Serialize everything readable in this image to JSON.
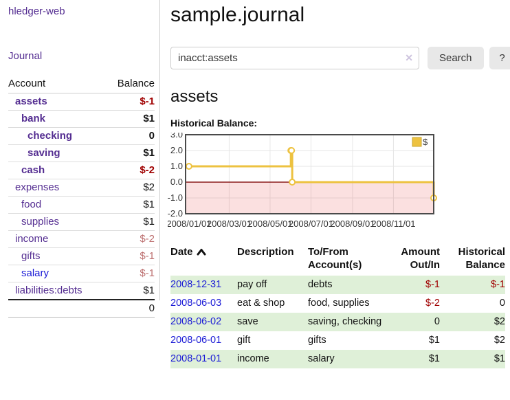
{
  "sidebar": {
    "app_title": "hledger-web",
    "nav": {
      "journal_label": "Journal"
    },
    "table": {
      "headers": {
        "account": "Account",
        "balance": "Balance"
      },
      "accounts": [
        {
          "name": "assets",
          "indent": 1,
          "bold": true,
          "link_color": "purple",
          "balance": "$-1",
          "balance_class": "neg-strong"
        },
        {
          "name": "bank",
          "indent": 2,
          "bold": true,
          "link_color": "purple",
          "balance": "$1",
          "balance_class": "pos"
        },
        {
          "name": "checking",
          "indent": 3,
          "bold": true,
          "link_color": "purple",
          "balance": "0",
          "balance_class": "pos"
        },
        {
          "name": "saving",
          "indent": 3,
          "bold": true,
          "link_color": "purple",
          "balance": "$1",
          "balance_class": "pos"
        },
        {
          "name": "cash",
          "indent": 2,
          "bold": true,
          "link_color": "purple",
          "balance": "$-2",
          "balance_class": "neg-strong"
        },
        {
          "name": "expenses",
          "indent": 1,
          "bold": false,
          "link_color": "purple",
          "balance": "$2",
          "balance_class": "pos"
        },
        {
          "name": "food",
          "indent": 2,
          "bold": false,
          "link_color": "purple",
          "balance": "$1",
          "balance_class": "pos"
        },
        {
          "name": "supplies",
          "indent": 2,
          "bold": false,
          "link_color": "purple",
          "balance": "$1",
          "balance_class": "pos"
        },
        {
          "name": "income",
          "indent": 1,
          "bold": false,
          "link_color": "purple",
          "balance": "$-2",
          "balance_class": "neg-dim"
        },
        {
          "name": "gifts",
          "indent": 2,
          "bold": false,
          "link_color": "purple",
          "balance": "$-1",
          "balance_class": "neg-dim"
        },
        {
          "name": "salary",
          "indent": 2,
          "bold": false,
          "link_color": "blue",
          "balance": "$-1",
          "balance_class": "neg-dim"
        },
        {
          "name": "liabilities:debts",
          "indent": 1,
          "bold": false,
          "link_color": "purple",
          "balance": "$1",
          "balance_class": "pos"
        }
      ],
      "total": "0"
    }
  },
  "header": {
    "title": "sample.journal"
  },
  "search": {
    "value": "inacct:assets",
    "clear_icon": "✕",
    "search_label": "Search",
    "help_label": "?"
  },
  "account_view": {
    "heading": "assets"
  },
  "chart_data": {
    "type": "line",
    "title": "Historical Balance:",
    "step": true,
    "series": [
      {
        "name": "$",
        "color": "#edc240",
        "points": [
          {
            "date": "2008-01-01",
            "value": 1
          },
          {
            "date": "2008-06-01",
            "value": 2
          },
          {
            "date": "2008-06-02",
            "value": 2
          },
          {
            "date": "2008-06-03",
            "value": 0
          },
          {
            "date": "2008-12-31",
            "value": -1
          }
        ]
      }
    ],
    "x_ticks": [
      "2008/01/01",
      "2008/03/01",
      "2008/05/01",
      "2008/07/01",
      "2008/09/01",
      "2008/11/01"
    ],
    "y_ticks": [
      3.0,
      2.0,
      1.0,
      0.0,
      -1.0,
      -2.0
    ],
    "ylim": [
      -2,
      3
    ],
    "x_range": [
      "2007-12-27",
      "2008-12-31"
    ],
    "legend": "$",
    "legend_position": "top-right",
    "grid": true,
    "colors": {
      "grid": "#e6e6e6",
      "border": "#4a4a4a",
      "negative_region": "rgba(228,62,62,0.16)",
      "zero_line": "#8b1a1a",
      "tick_text": "#333"
    }
  },
  "register": {
    "headers": {
      "date": "Date",
      "description": "Description",
      "tofrom": "To/From Account(s)",
      "amount": "Amount Out/In",
      "balance": "Historical Balance"
    },
    "rows": [
      {
        "date": "2008-12-31",
        "description": "pay off",
        "accounts": "debts",
        "amount": "$-1",
        "amount_class": "neg",
        "balance": "$-1",
        "balance_class": "neg"
      },
      {
        "date": "2008-06-03",
        "description": "eat & shop",
        "accounts": "food, supplies",
        "amount": "$-2",
        "amount_class": "neg",
        "balance": "0",
        "balance_class": "pos"
      },
      {
        "date": "2008-06-02",
        "description": "save",
        "accounts": "saving, checking",
        "amount": "0",
        "amount_class": "pos",
        "balance": "$2",
        "balance_class": "pos"
      },
      {
        "date": "2008-06-01",
        "description": "gift",
        "accounts": "gifts",
        "amount": "$1",
        "amount_class": "pos",
        "balance": "$2",
        "balance_class": "pos"
      },
      {
        "date": "2008-01-01",
        "description": "income",
        "accounts": "salary",
        "amount": "$1",
        "amount_class": "pos",
        "balance": "$1",
        "balance_class": "pos"
      }
    ]
  }
}
